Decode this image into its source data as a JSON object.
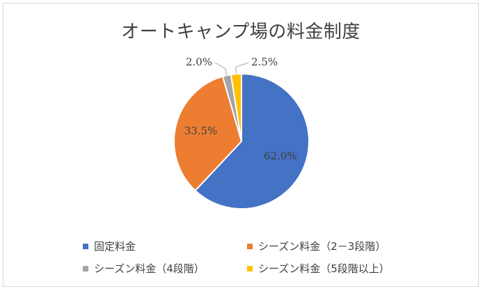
{
  "chart_data": {
    "type": "pie",
    "title": "オートキャンプ場の料金制度",
    "categories": [
      "固定料金",
      "シーズン料金（2－3段階）",
      "シーズン料金（4段階）",
      "シーズン料金（5段階以上）"
    ],
    "values": [
      62.0,
      33.5,
      2.0,
      2.5
    ],
    "data_labels": [
      "62.0%",
      "33.5%",
      "2.0%",
      "2.5%"
    ],
    "colors": [
      "#4472c4",
      "#ed7d31",
      "#a5a5a5",
      "#ffc000"
    ],
    "legend_position": "bottom"
  }
}
